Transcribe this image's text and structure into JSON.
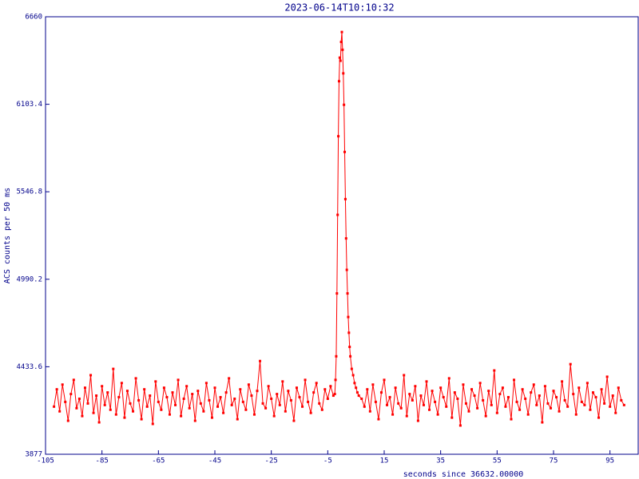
{
  "chart_data": {
    "type": "line",
    "title": "2023-06-14T10:10:32",
    "xlabel": "seconds since 36632.00000",
    "ylabel": "ACS counts per 50 ms",
    "xlim": [
      -105,
      105
    ],
    "xticks": [
      -105,
      -85,
      -65,
      -45,
      -25,
      -5,
      15,
      35,
      55,
      75,
      95
    ],
    "ylim": [
      3877,
      6660
    ],
    "yticks": [
      3877,
      4433.6,
      4990.2,
      5546.8,
      6103.4,
      6660
    ],
    "x": [
      -102,
      -101,
      -100,
      -99,
      -98,
      -97,
      -96,
      -95,
      -94,
      -93,
      -92,
      -91,
      -90,
      -89,
      -88,
      -87,
      -86,
      -85,
      -84,
      -83,
      -82,
      -81,
      -80,
      -79,
      -78,
      -77,
      -76,
      -75,
      -74,
      -73,
      -72,
      -71,
      -70,
      -69,
      -68,
      -67,
      -66,
      -65,
      -64,
      -63,
      -62,
      -61,
      -60,
      -59,
      -58,
      -57,
      -56,
      -55,
      -54,
      -53,
      -52,
      -51,
      -50,
      -49,
      -48,
      -47,
      -46,
      -45,
      -44,
      -43,
      -42,
      -41,
      -40,
      -39,
      -38,
      -37,
      -36,
      -35,
      -34,
      -33,
      -32,
      -31,
      -30,
      -29,
      -28,
      -27,
      -26,
      -25,
      -24,
      -23,
      -22,
      -21,
      -20,
      -19,
      -18,
      -17,
      -16,
      -15,
      -14,
      -13,
      -12,
      -11,
      -10,
      -9,
      -8,
      -7,
      -6,
      -5,
      -4,
      -3,
      -2.5,
      -2.25,
      -2,
      -1.75,
      -1.5,
      -1.25,
      -1,
      -0.75,
      -0.5,
      -0.25,
      0,
      0.25,
      0.5,
      0.75,
      1,
      1.25,
      1.5,
      1.75,
      2,
      2.25,
      2.5,
      2.75,
      3,
      3.5,
      4,
      4.5,
      5,
      5.5,
      6,
      7,
      8,
      9,
      10,
      11,
      12,
      13,
      14,
      15,
      16,
      17,
      18,
      19,
      20,
      21,
      22,
      23,
      24,
      25,
      26,
      27,
      28,
      29,
      30,
      31,
      32,
      33,
      34,
      35,
      36,
      37,
      38,
      39,
      40,
      41,
      42,
      43,
      44,
      45,
      46,
      47,
      48,
      49,
      50,
      51,
      52,
      53,
      54,
      55,
      56,
      57,
      58,
      59,
      60,
      61,
      62,
      63,
      64,
      65,
      66,
      67,
      68,
      69,
      70,
      71,
      72,
      73,
      74,
      75,
      76,
      77,
      78,
      79,
      80,
      81,
      82,
      83,
      84,
      85,
      86,
      87,
      88,
      89,
      90,
      91,
      92,
      93,
      94,
      95,
      96,
      97,
      98,
      99,
      100
    ],
    "series": [
      {
        "color": "#ff0000",
        "values": [
          4180,
          4290,
          4150,
          4320,
          4210,
          4090,
          4260,
          4350,
          4170,
          4230,
          4120,
          4300,
          4200,
          4380,
          4140,
          4250,
          4080,
          4310,
          4190,
          4270,
          4160,
          4420,
          4130,
          4240,
          4330,
          4110,
          4280,
          4200,
          4150,
          4360,
          4220,
          4100,
          4290,
          4180,
          4250,
          4070,
          4340,
          4210,
          4160,
          4300,
          4240,
          4130,
          4270,
          4190,
          4350,
          4120,
          4230,
          4310,
          4170,
          4260,
          4090,
          4280,
          4200,
          4150,
          4330,
          4220,
          4110,
          4300,
          4180,
          4240,
          4140,
          4270,
          4360,
          4190,
          4230,
          4100,
          4290,
          4210,
          4160,
          4320,
          4250,
          4130,
          4280,
          4470,
          4200,
          4170,
          4310,
          4230,
          4120,
          4260,
          4190,
          4340,
          4150,
          4280,
          4220,
          4090,
          4300,
          4240,
          4180,
          4350,
          4210,
          4140,
          4270,
          4330,
          4200,
          4160,
          4290,
          4230,
          4310,
          4250,
          4260,
          4350,
          4500,
          4900,
          5400,
          5900,
          6250,
          6400,
          6380,
          6500,
          6563,
          6450,
          6300,
          6100,
          5800,
          5500,
          5250,
          5050,
          4900,
          4750,
          4650,
          4560,
          4500,
          4420,
          4380,
          4330,
          4300,
          4270,
          4250,
          4230,
          4180,
          4290,
          4150,
          4320,
          4210,
          4100,
          4270,
          4350,
          4190,
          4240,
          4130,
          4300,
          4200,
          4170,
          4380,
          4120,
          4260,
          4220,
          4310,
          4090,
          4250,
          4190,
          4340,
          4160,
          4280,
          4210,
          4130,
          4300,
          4240,
          4180,
          4360,
          4110,
          4270,
          4230,
          4060,
          4320,
          4200,
          4150,
          4290,
          4250,
          4170,
          4330,
          4220,
          4120,
          4280,
          4190,
          4410,
          4140,
          4260,
          4300,
          4180,
          4240,
          4100,
          4350,
          4210,
          4160,
          4290,
          4230,
          4130,
          4270,
          4320,
          4190,
          4250,
          4080,
          4310,
          4200,
          4170,
          4280,
          4240,
          4150,
          4340,
          4220,
          4180,
          4450,
          4260,
          4130,
          4300,
          4210,
          4190,
          4330,
          4160,
          4270,
          4240,
          4110,
          4290,
          4200,
          4370,
          4180,
          4250,
          4140,
          4300,
          4220,
          4190
        ]
      }
    ]
  }
}
